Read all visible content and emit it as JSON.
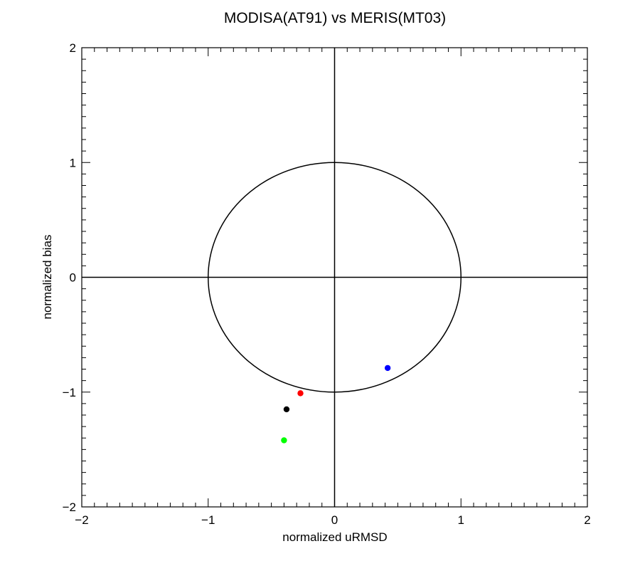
{
  "chart_data": {
    "type": "scatter",
    "title": "MODISA(AT91) vs MERIS(MT03)",
    "xlabel": "normalized uRMSD",
    "ylabel": "normalized bias",
    "xlim": [
      -2,
      2
    ],
    "ylim": [
      -2,
      2
    ],
    "xticks": [
      -2,
      -1,
      0,
      1,
      2
    ],
    "yticks": [
      -2,
      -1,
      0,
      1,
      2
    ],
    "x_tick_labels": [
      "−2",
      "−1",
      "0",
      "1",
      "2"
    ],
    "y_tick_labels": [
      "−2",
      "−1",
      "0",
      "1",
      "2"
    ],
    "minor_ticks_per_major": 10,
    "reference_circle_radius": 1,
    "reference_lines": {
      "x": 0,
      "y": 0
    },
    "grid": false,
    "points": [
      {
        "x": 0.42,
        "y": -0.79,
        "color": "#0000ff"
      },
      {
        "x": -0.27,
        "y": -1.01,
        "color": "#ff0000"
      },
      {
        "x": -0.38,
        "y": -1.15,
        "color": "#000000"
      },
      {
        "x": -0.4,
        "y": -1.42,
        "color": "#00ff00"
      }
    ]
  }
}
